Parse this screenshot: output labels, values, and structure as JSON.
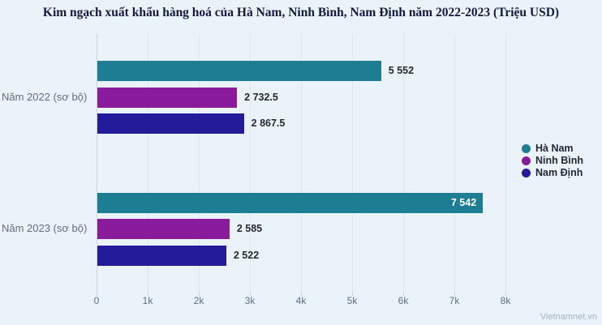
{
  "title": "Kim ngạch xuất khẩu hàng hoá của Hà Nam, Ninh Bình, Nam Định năm 2022-2023 (Triệu USD)",
  "watermark": "Vietnamnet.vn",
  "chart_data": {
    "type": "bar",
    "orientation": "horizontal",
    "title": "Kim ngạch xuất khẩu hàng hoá của Hà Nam, Ninh Bình, Nam Định năm 2022-2023 (Triệu USD)",
    "categories": [
      "Năm 2022 (sơ bộ)",
      "Năm 2023 (sơ bộ)"
    ],
    "series": [
      {
        "name": "Hà Nam",
        "color": "#1d7e93",
        "values": [
          5552,
          7542
        ],
        "value_labels": [
          "5 552",
          "7 542"
        ],
        "label_inside": [
          false,
          true
        ]
      },
      {
        "name": "Ninh Bình",
        "color": "#8b1b9d",
        "values": [
          2732.5,
          2585
        ],
        "value_labels": [
          "2 732.5",
          "2 585"
        ],
        "label_inside": [
          false,
          false
        ]
      },
      {
        "name": "Nam Định",
        "color": "#231b99",
        "values": [
          2867.5,
          2522
        ],
        "value_labels": [
          "2 867.5",
          "2 522"
        ],
        "label_inside": [
          false,
          false
        ]
      }
    ],
    "xlabel": "",
    "ylabel": "",
    "xticks": {
      "values": [
        0,
        1000,
        2000,
        3000,
        4000,
        5000,
        6000,
        7000,
        8000
      ],
      "labels": [
        "0",
        "1k",
        "2k",
        "3k",
        "4k",
        "5k",
        "6k",
        "7k",
        "8k"
      ]
    },
    "xlim": [
      0,
      8222
    ],
    "grid": true,
    "legend_position": "right",
    "value_suffix_unit": "Triệu USD"
  },
  "colors": {
    "background": "#eaf2fa",
    "gridline": "#dee7f1",
    "axis_line": "#ccd6e2",
    "title_text": "#131a3d",
    "tick_text": "#5f7083",
    "category_text": "#646d79",
    "value_text": "#26292c",
    "watermark_text": "#a3b2c5"
  }
}
